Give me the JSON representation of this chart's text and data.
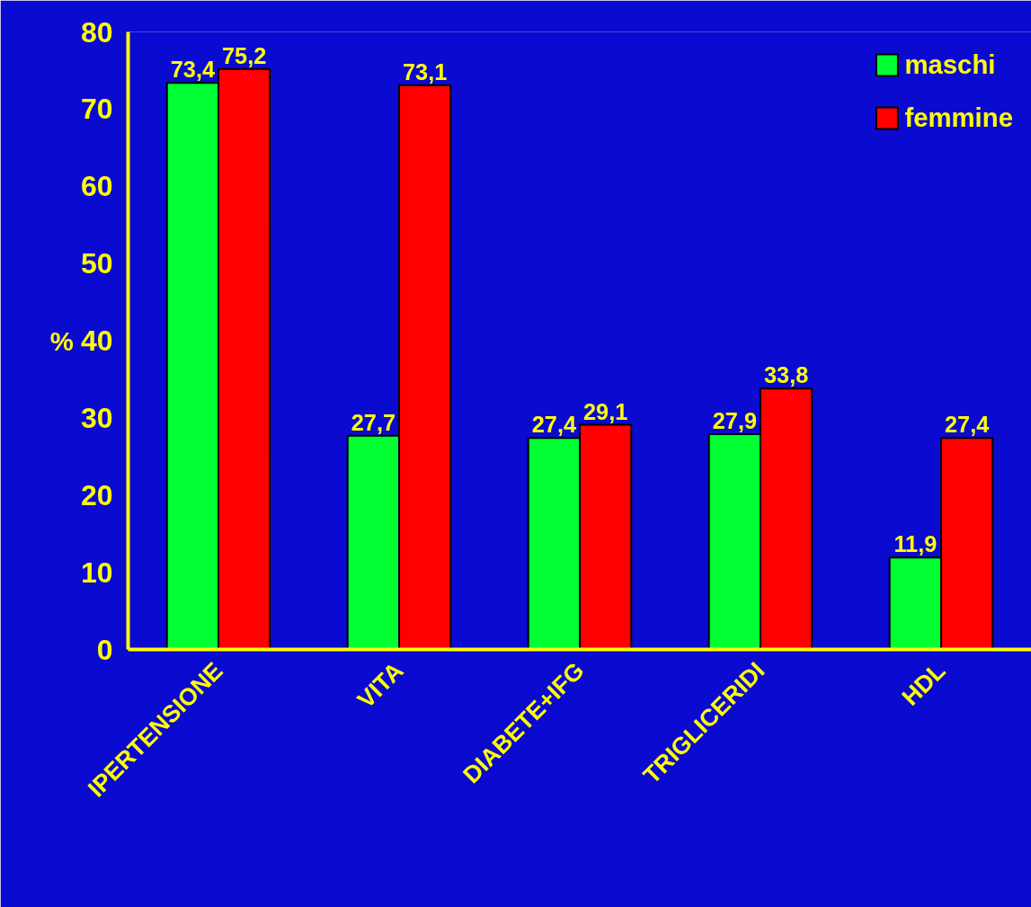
{
  "chart_data": {
    "type": "bar",
    "ylabel": "%",
    "categories": [
      "IPERTENSIONE",
      "VITA",
      "DIABETE+IFG",
      "TRIGLICERIDI",
      "HDL"
    ],
    "series": [
      {
        "name": "maschi",
        "color": "#00ff33",
        "values": [
          73.4,
          27.7,
          27.4,
          27.9,
          11.9
        ],
        "value_labels": [
          "73,4",
          "27,7",
          "27,4",
          "27,9",
          "11,9"
        ]
      },
      {
        "name": "femmine",
        "color": "#ff0000",
        "values": [
          75.2,
          73.1,
          29.1,
          33.8,
          27.4
        ],
        "value_labels": [
          "75,2",
          "73,1",
          "29,1",
          "33,8",
          "27,4"
        ]
      }
    ],
    "ylim": [
      0,
      80
    ],
    "yticks": [
      0,
      10,
      20,
      30,
      40,
      50,
      60,
      70,
      80
    ],
    "grid": false,
    "legend": "top right"
  }
}
